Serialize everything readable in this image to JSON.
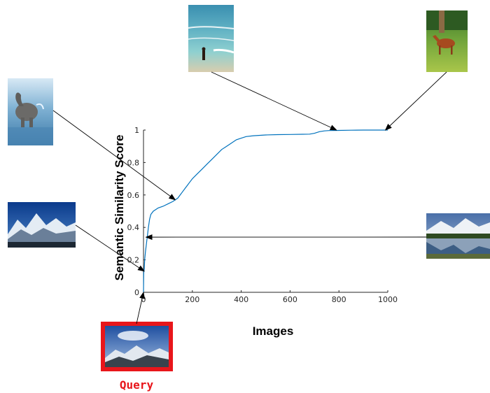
{
  "chart_data": {
    "type": "line",
    "title": "",
    "xlabel": "Images",
    "ylabel": "Semantic Similarity Score",
    "xlim": [
      0,
      1000
    ],
    "ylim": [
      0,
      1
    ],
    "xticks": [
      "0",
      "200",
      "400",
      "600",
      "800",
      "1000"
    ],
    "yticks": [
      "0",
      "0.2",
      "0.4",
      "0.6",
      "0.8",
      "1"
    ],
    "grid": false,
    "series": [
      {
        "color": "#0072bd",
        "x": [
          0,
          1,
          3,
          5,
          8,
          12,
          16,
          20,
          25,
          30,
          40,
          50,
          60,
          80,
          100,
          120,
          130,
          140,
          150,
          160,
          170,
          180,
          190,
          200,
          220,
          240,
          260,
          280,
          300,
          320,
          340,
          360,
          380,
          400,
          420,
          450,
          500,
          550,
          600,
          650,
          680,
          700,
          720,
          740,
          760,
          800,
          850,
          900,
          950,
          1000
        ],
        "values": [
          0.0,
          0.12,
          0.14,
          0.2,
          0.25,
          0.3,
          0.35,
          0.4,
          0.45,
          0.48,
          0.5,
          0.51,
          0.52,
          0.53,
          0.545,
          0.56,
          0.57,
          0.58,
          0.6,
          0.62,
          0.64,
          0.66,
          0.68,
          0.7,
          0.73,
          0.76,
          0.79,
          0.82,
          0.85,
          0.88,
          0.9,
          0.92,
          0.94,
          0.95,
          0.96,
          0.965,
          0.97,
          0.972,
          0.973,
          0.974,
          0.975,
          0.98,
          0.99,
          0.995,
          0.997,
          0.998,
          0.999,
          1.0,
          1.0,
          1.0
        ]
      }
    ],
    "annotations": [
      "Query"
    ]
  },
  "thumbnails": [
    {
      "name": "beach-thumbnail",
      "subject": "person on beach",
      "x": 790,
      "y": 1.0
    },
    {
      "name": "horse-thumbnail",
      "subject": "horse on grass",
      "x": 990,
      "y": 1.0
    },
    {
      "name": "elephant-thumbnail",
      "subject": "elephant in water",
      "x": 130,
      "y": 0.57
    },
    {
      "name": "mountain-thumbnail",
      "subject": "snowy mountains",
      "x": 3,
      "y": 0.13
    },
    {
      "name": "lake-thumbnail",
      "subject": "mountain lake reflection",
      "x": 10,
      "y": 0.34
    },
    {
      "name": "query-thumbnail",
      "subject": "query mountains",
      "x": 0,
      "y": 0.0
    }
  ]
}
